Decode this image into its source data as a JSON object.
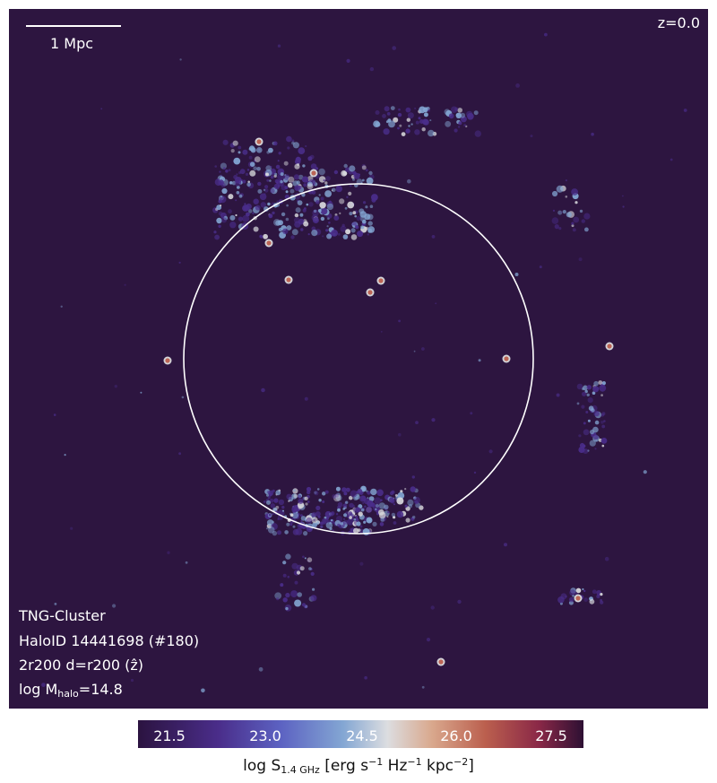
{
  "image": {
    "scale_bar_label": "1 Mpc",
    "redshift": "z=0.0",
    "simulation": "TNG-Cluster",
    "halo_id": "HaloID 14441698 (#180)",
    "projection": "2r200 d=r200 (ẑ)",
    "mass_prefix": "log M",
    "mass_subscript": "halo",
    "mass_value": "=14.8"
  },
  "colorbar": {
    "ticks": [
      "21.5",
      "23.0",
      "24.5",
      "26.0",
      "27.5"
    ],
    "label_prefix": "log S",
    "label_subscript": "1.4 GHz",
    "label_units_a": " [erg s",
    "label_exp1": "−1",
    "label_units_b": " Hz",
    "label_exp2": "−1",
    "label_units_c": " kpc",
    "label_exp3": "−2",
    "label_close": "]"
  },
  "colors": {
    "background": "#2d1540",
    "low": "#4a2d8a",
    "mid": "#83a6d3",
    "peak_light": "#dcdde0",
    "high": "#bb5f4e"
  }
}
